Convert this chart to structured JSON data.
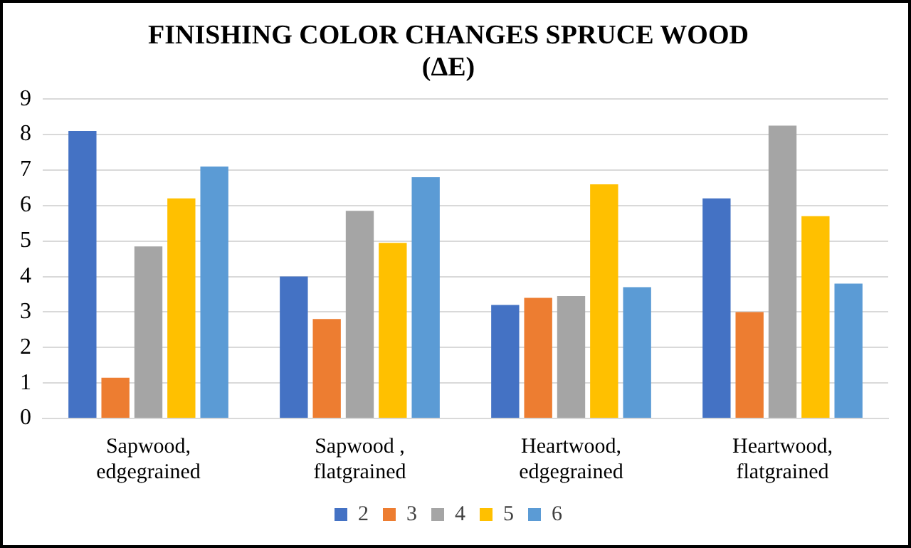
{
  "chart_data": {
    "type": "bar",
    "title": "FINISHING COLOR CHANGES SPRUCE WOOD (ΔE)",
    "categories": [
      "Sapwood, edgegrained",
      "Sapwood , flatgrained",
      "Heartwood, edgegrained",
      "Heartwood, flatgrained"
    ],
    "series": [
      {
        "name": "2",
        "color": "#4472c4",
        "values": [
          8.1,
          4.0,
          3.2,
          6.2
        ]
      },
      {
        "name": "3",
        "color": "#ed7d31",
        "values": [
          1.15,
          2.8,
          3.4,
          3.0
        ]
      },
      {
        "name": "4",
        "color": "#a5a5a5",
        "values": [
          4.85,
          5.85,
          3.45,
          8.25
        ]
      },
      {
        "name": "5",
        "color": "#ffc000",
        "values": [
          6.2,
          4.95,
          6.6,
          5.7
        ]
      },
      {
        "name": "6",
        "color": "#5b9bd5",
        "values": [
          7.1,
          6.8,
          3.7,
          3.8
        ]
      }
    ],
    "ylim": [
      0,
      9
    ],
    "yticks": [
      0,
      1,
      2,
      3,
      4,
      5,
      6,
      7,
      8,
      9
    ],
    "grid": "y",
    "legend": "bottom"
  }
}
